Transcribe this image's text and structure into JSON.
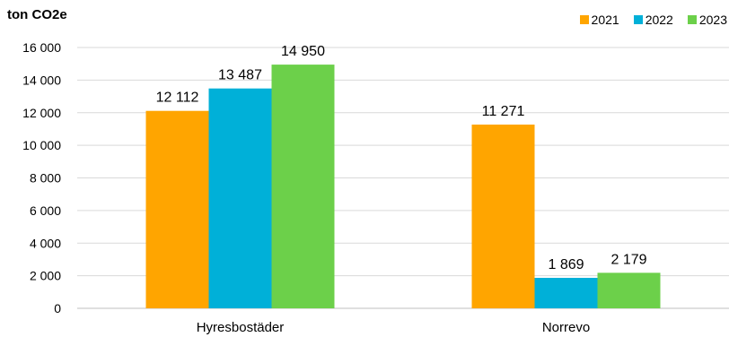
{
  "chart_data": {
    "type": "bar",
    "ylabel": "ton CO2e",
    "categories": [
      "Hyresbostäder",
      "Norrevo"
    ],
    "series": [
      {
        "name": "2021",
        "color": "#FFA500",
        "values": [
          12112,
          11271
        ],
        "labels": [
          "12 112",
          "11 271"
        ]
      },
      {
        "name": "2022",
        "color": "#00B0D8",
        "values": [
          13487,
          1869
        ],
        "labels": [
          "13 487",
          "1 869"
        ]
      },
      {
        "name": "2023",
        "color": "#6CD04A",
        "values": [
          14950,
          2179
        ],
        "labels": [
          "14 950",
          "2 179"
        ]
      }
    ],
    "ylim": [
      0,
      16000
    ],
    "yticks": [
      0,
      2000,
      4000,
      6000,
      8000,
      10000,
      12000,
      14000,
      16000
    ],
    "ytick_labels": [
      "0",
      "2 000",
      "4 000",
      "6 000",
      "8 000",
      "10 000",
      "12 000",
      "14 000",
      "16 000"
    ],
    "grid": true,
    "legend_position": "top-right"
  }
}
